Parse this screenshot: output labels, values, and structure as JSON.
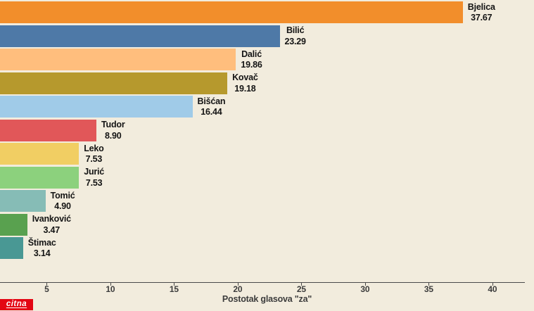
{
  "chart_data": {
    "type": "bar",
    "orientation": "horizontal",
    "title": "",
    "xlabel": "Postotak glasova \"za\"",
    "ylabel": "",
    "categories": [
      "Bjelica",
      "Bilić",
      "Dalić",
      "Kovač",
      "Bišćan",
      "Tudor",
      "Leko",
      "Jurić",
      "Tomić",
      "Ivanković",
      "Štimac"
    ],
    "values": [
      37.67,
      23.29,
      19.86,
      19.18,
      16.44,
      8.9,
      7.53,
      7.53,
      4.9,
      3.47,
      3.14
    ],
    "value_labels": [
      "37.67",
      "23.29",
      "19.86",
      "19.18",
      "16.44",
      "8.90",
      "7.53",
      "7.53",
      "4.90",
      "3.47",
      "3.14"
    ],
    "bar_colors": [
      "#f28e2b",
      "#4e79a7",
      "#ffbe7d",
      "#b6992d",
      "#a0cbe8",
      "#e15759",
      "#f1ce63",
      "#8cd17d",
      "#86bcb6",
      "#59a14f",
      "#499894"
    ],
    "x_ticks": [
      5,
      10,
      15,
      20,
      25,
      30,
      35,
      40
    ],
    "x_axis_visible_range": [
      1.33,
      43.3
    ],
    "grid": "off",
    "legend": "none",
    "value_label_position": "outside-right-of-bar"
  },
  "branding": {
    "logo_text": "citna"
  },
  "colors": {
    "background": "#f2ecdd",
    "axis": "#4a4a4a",
    "bar_label_text": "#141414",
    "tick_text": "#3c3c3c",
    "logo_bg": "#e30613",
    "logo_fg": "#ffffff"
  }
}
